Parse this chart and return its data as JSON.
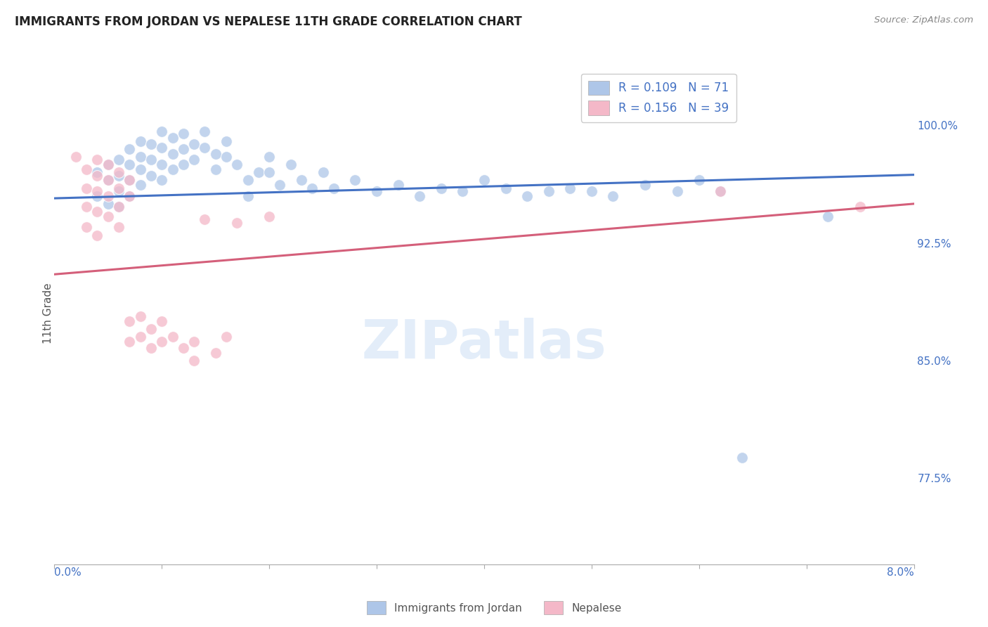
{
  "title": "IMMIGRANTS FROM JORDAN VS NEPALESE 11TH GRADE CORRELATION CHART",
  "source": "Source: ZipAtlas.com",
  "ylabel": "11th Grade",
  "ylabel_right_ticks": [
    "100.0%",
    "92.5%",
    "85.0%",
    "77.5%"
  ],
  "ylabel_right_vals": [
    1.0,
    0.925,
    0.85,
    0.775
  ],
  "xlim": [
    0.0,
    0.08
  ],
  "ylim": [
    0.72,
    1.04
  ],
  "blue_color": "#aec6e8",
  "pink_color": "#f4b8c8",
  "blue_line_color": "#4472c4",
  "pink_line_color": "#d45f7a",
  "text_color_blue": "#4472c4",
  "background_color": "#ffffff",
  "grid_color": "#e0e0e0",
  "blue_line_x": [
    0.0,
    0.08
  ],
  "blue_line_y": [
    0.9535,
    0.9685
  ],
  "pink_line_x": [
    0.0,
    0.08
  ],
  "pink_line_y": [
    0.905,
    0.95
  ],
  "blue_scatter": [
    [
      0.004,
      0.97
    ],
    [
      0.004,
      0.955
    ],
    [
      0.005,
      0.975
    ],
    [
      0.005,
      0.965
    ],
    [
      0.005,
      0.95
    ],
    [
      0.006,
      0.978
    ],
    [
      0.006,
      0.968
    ],
    [
      0.006,
      0.958
    ],
    [
      0.006,
      0.948
    ],
    [
      0.007,
      0.985
    ],
    [
      0.007,
      0.975
    ],
    [
      0.007,
      0.965
    ],
    [
      0.007,
      0.955
    ],
    [
      0.008,
      0.99
    ],
    [
      0.008,
      0.98
    ],
    [
      0.008,
      0.972
    ],
    [
      0.008,
      0.962
    ],
    [
      0.009,
      0.988
    ],
    [
      0.009,
      0.978
    ],
    [
      0.009,
      0.968
    ],
    [
      0.01,
      0.996
    ],
    [
      0.01,
      0.986
    ],
    [
      0.01,
      0.975
    ],
    [
      0.01,
      0.965
    ],
    [
      0.011,
      0.992
    ],
    [
      0.011,
      0.982
    ],
    [
      0.011,
      0.972
    ],
    [
      0.012,
      0.995
    ],
    [
      0.012,
      0.985
    ],
    [
      0.012,
      0.975
    ],
    [
      0.013,
      0.988
    ],
    [
      0.013,
      0.978
    ],
    [
      0.014,
      0.996
    ],
    [
      0.014,
      0.986
    ],
    [
      0.015,
      0.982
    ],
    [
      0.015,
      0.972
    ],
    [
      0.016,
      0.99
    ],
    [
      0.016,
      0.98
    ],
    [
      0.017,
      0.975
    ],
    [
      0.018,
      0.965
    ],
    [
      0.018,
      0.955
    ],
    [
      0.019,
      0.97
    ],
    [
      0.02,
      0.98
    ],
    [
      0.02,
      0.97
    ],
    [
      0.021,
      0.962
    ],
    [
      0.022,
      0.975
    ],
    [
      0.023,
      0.965
    ],
    [
      0.024,
      0.96
    ],
    [
      0.025,
      0.97
    ],
    [
      0.026,
      0.96
    ],
    [
      0.028,
      0.965
    ],
    [
      0.03,
      0.958
    ],
    [
      0.032,
      0.962
    ],
    [
      0.034,
      0.955
    ],
    [
      0.036,
      0.96
    ],
    [
      0.038,
      0.958
    ],
    [
      0.04,
      0.965
    ],
    [
      0.042,
      0.96
    ],
    [
      0.044,
      0.955
    ],
    [
      0.046,
      0.958
    ],
    [
      0.048,
      0.96
    ],
    [
      0.05,
      0.958
    ],
    [
      0.052,
      0.955
    ],
    [
      0.055,
      0.962
    ],
    [
      0.058,
      0.958
    ],
    [
      0.06,
      0.965
    ],
    [
      0.062,
      0.958
    ],
    [
      0.064,
      0.788
    ],
    [
      0.072,
      0.942
    ]
  ],
  "pink_scatter": [
    [
      0.002,
      0.98
    ],
    [
      0.003,
      0.972
    ],
    [
      0.003,
      0.96
    ],
    [
      0.003,
      0.948
    ],
    [
      0.003,
      0.935
    ],
    [
      0.004,
      0.978
    ],
    [
      0.004,
      0.968
    ],
    [
      0.004,
      0.958
    ],
    [
      0.004,
      0.945
    ],
    [
      0.004,
      0.93
    ],
    [
      0.005,
      0.975
    ],
    [
      0.005,
      0.965
    ],
    [
      0.005,
      0.955
    ],
    [
      0.005,
      0.942
    ],
    [
      0.006,
      0.97
    ],
    [
      0.006,
      0.96
    ],
    [
      0.006,
      0.948
    ],
    [
      0.006,
      0.935
    ],
    [
      0.007,
      0.965
    ],
    [
      0.007,
      0.955
    ],
    [
      0.007,
      0.875
    ],
    [
      0.007,
      0.862
    ],
    [
      0.008,
      0.878
    ],
    [
      0.008,
      0.865
    ],
    [
      0.009,
      0.87
    ],
    [
      0.009,
      0.858
    ],
    [
      0.01,
      0.875
    ],
    [
      0.01,
      0.862
    ],
    [
      0.011,
      0.865
    ],
    [
      0.012,
      0.858
    ],
    [
      0.013,
      0.862
    ],
    [
      0.013,
      0.85
    ],
    [
      0.014,
      0.94
    ],
    [
      0.015,
      0.855
    ],
    [
      0.016,
      0.865
    ],
    [
      0.017,
      0.938
    ],
    [
      0.02,
      0.942
    ],
    [
      0.062,
      0.958
    ],
    [
      0.075,
      0.948
    ]
  ]
}
